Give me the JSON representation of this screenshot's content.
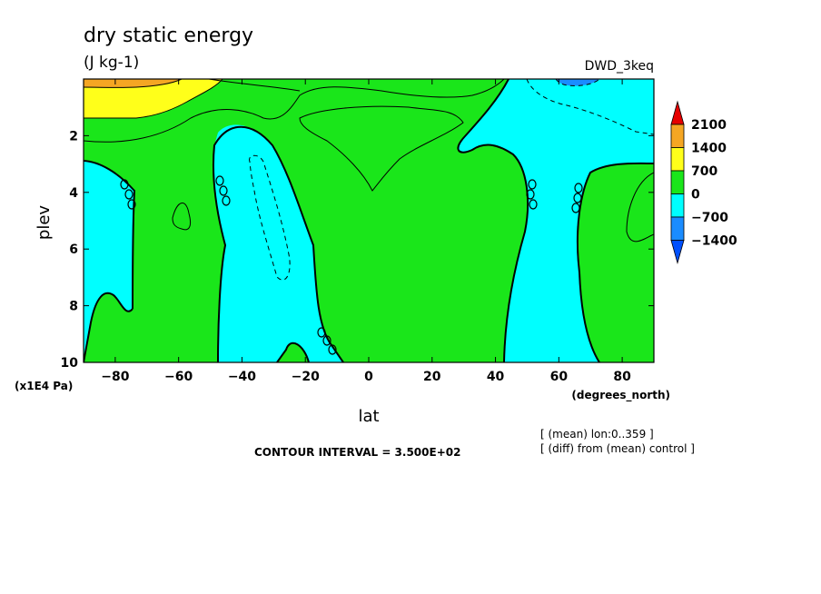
{
  "chart_data": {
    "type": "contour",
    "title": "dry static energy",
    "units": "(J kg-1)",
    "model": "DWD_3keq",
    "xlabel": "lat",
    "xunits": "(degrees_north)",
    "ylabel": "plev",
    "yunits": "(x1E4 Pa)",
    "xlim": [
      -90,
      90
    ],
    "ylim": [
      10,
      0
    ],
    "xticks": [
      -80,
      -60,
      -40,
      -20,
      0,
      20,
      40,
      60,
      80
    ],
    "yticks": [
      2,
      4,
      6,
      8,
      10
    ],
    "contour_interval": "CONTOUR INTERVAL = 3.500E+02",
    "notes": [
      "[ (mean) lon:0..359 ]",
      "[ (diff) from (mean) control ]"
    ],
    "colorbar": {
      "levels": [
        2100,
        1400,
        700,
        0,
        -700,
        -1400
      ],
      "colors": [
        "#e60000",
        "#f5a623",
        "#ffff1a",
        "#1ae61a",
        "#00ffff",
        "#1a8cff",
        "#0050ff"
      ]
    }
  }
}
